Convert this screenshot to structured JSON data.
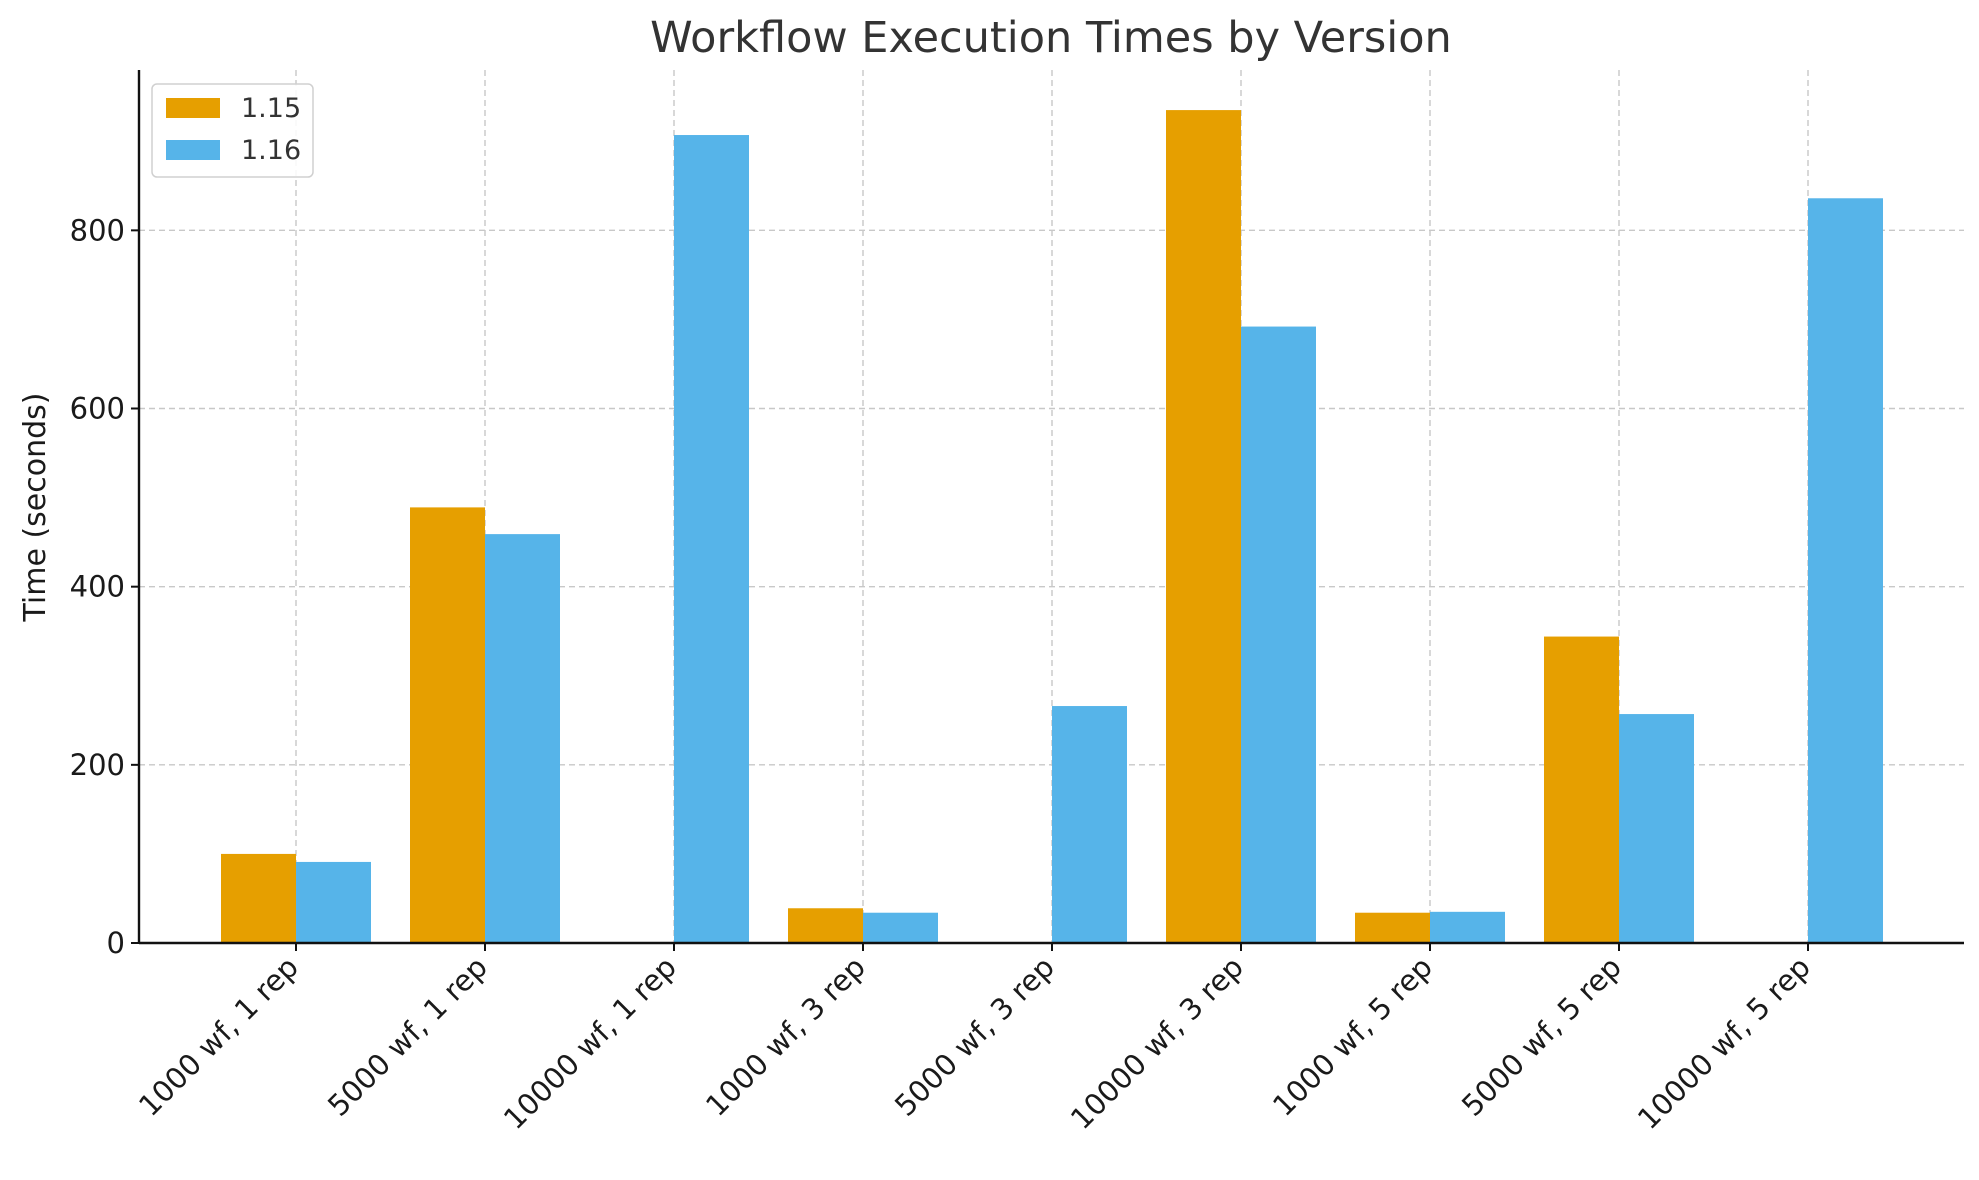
{
  "chart_data": {
    "type": "bar",
    "title": "Workflow Execution Times by Version",
    "xlabel": "",
    "ylabel": "Time (seconds)",
    "ylim": [
      0,
      980
    ],
    "yticks": [
      0,
      200,
      400,
      600,
      800
    ],
    "grid": true,
    "legend_position": "top-left",
    "categories": [
      "1000 wf, 1 rep",
      "5000 wf, 1 rep",
      "10000 wf, 1 rep",
      "1000 wf, 3 rep",
      "5000 wf, 3 rep",
      "10000 wf, 3 rep",
      "1000 wf, 5 rep",
      "5000 wf, 5 rep",
      "10000 wf, 5 rep"
    ],
    "series": [
      {
        "name": "1.15",
        "color": "#E69F00",
        "values": [
          100,
          489,
          0,
          39,
          0,
          935,
          34,
          344,
          0
        ]
      },
      {
        "name": "1.16",
        "color": "#56B4E9",
        "values": [
          91,
          459,
          907,
          34,
          266,
          692,
          35,
          257,
          836
        ]
      }
    ]
  }
}
